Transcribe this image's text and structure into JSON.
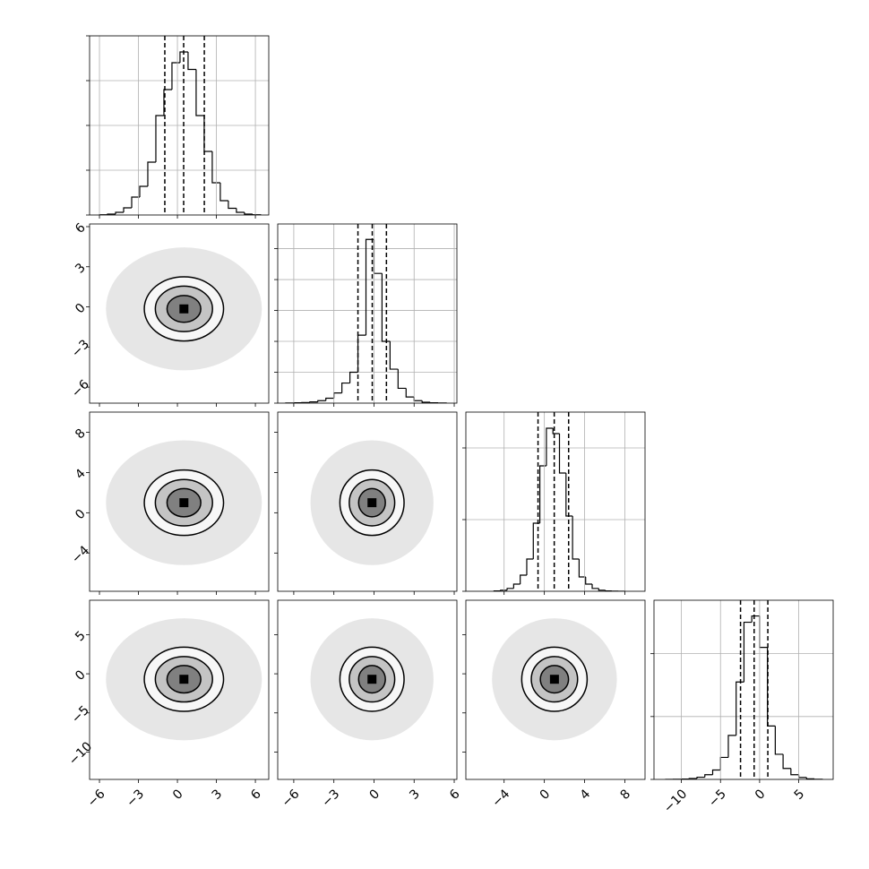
{
  "chart_data": {
    "type": "corner",
    "variables": [
      {
        "xlim": [
          -6.76,
          7.03
        ],
        "ticks": [
          {
            "value": -6,
            "label": "−6"
          },
          {
            "value": -3,
            "label": "−3"
          },
          0,
          3,
          6
        ],
        "bins": [
          -6,
          -5.38,
          -4.76,
          -4.14,
          -3.52,
          -2.9,
          -2.28,
          -1.66,
          -1.04,
          -0.42,
          0.2,
          0.82,
          1.44,
          2.06,
          2.68,
          3.3,
          3.92,
          4.54,
          5.16,
          5.78,
          6.4
        ],
        "counts": [
          5,
          20,
          60,
          160,
          400,
          640,
          1180,
          2220,
          2800,
          3400,
          3640,
          3250,
          2220,
          1420,
          720,
          320,
          150,
          60,
          20,
          5
        ],
        "quantiles": [
          -0.97,
          0.48,
          2.07
        ],
        "mean": 0.5,
        "contour_radii": [
          6.0,
          3.05,
          2.2,
          1.3
        ],
        "hist_ylim": [
          0,
          4000
        ],
        "hist_yticks": [
          0,
          1000,
          2000,
          3000,
          4000
        ]
      },
      {
        "xlim": [
          -7.2,
          6.2
        ],
        "ticks": [
          {
            "value": -6,
            "label": "−6"
          },
          {
            "value": -3,
            "label": "−3"
          },
          0,
          3,
          6
        ],
        "bins": [
          -6.6,
          -6,
          -5.4,
          -4.8,
          -4.2,
          -3.6,
          -3,
          -2.4,
          -1.8,
          -1.2,
          -0.6,
          0,
          0.6,
          1.2,
          1.8,
          2.4,
          3,
          3.6,
          4.2,
          4.8,
          5.4
        ],
        "counts": [
          5,
          10,
          20,
          40,
          80,
          160,
          330,
          650,
          1000,
          2200,
          5300,
          4200,
          2000,
          1100,
          480,
          200,
          80,
          30,
          10,
          5
        ],
        "quantiles": [
          -1.2,
          -0.13,
          0.93
        ],
        "mean": -0.15,
        "contour_radii": [
          4.6,
          2.4,
          1.7,
          1.0
        ],
        "hist_ylim": [
          0,
          5800
        ],
        "hist_yticks": [
          0,
          1000,
          2000,
          3000,
          4000,
          5000
        ]
      },
      {
        "xlim": [
          -7.8,
          10
        ],
        "ticks": [
          {
            "value": -4,
            "label": "−4"
          },
          0,
          4,
          8
        ],
        "bins": [
          -5,
          -4.35,
          -3.7,
          -3.05,
          -2.4,
          -1.75,
          -1.1,
          -0.45,
          0.2,
          0.85,
          1.5,
          2.15,
          2.8,
          3.45,
          4.1,
          4.75,
          5.4,
          6.05,
          6.7,
          7.35,
          8
        ],
        "counts": [
          10,
          30,
          80,
          200,
          450,
          900,
          1900,
          3500,
          4550,
          4400,
          3300,
          2100,
          900,
          400,
          200,
          80,
          30,
          10,
          5,
          2
        ],
        "quantiles": [
          -0.63,
          0.98,
          2.41
        ],
        "mean": 1.0,
        "contour_radii": [
          6.2,
          3.25,
          2.3,
          1.4
        ],
        "hist_ylim": [
          0,
          5000
        ],
        "hist_yticks": [
          0,
          2000,
          4000
        ]
      },
      {
        "xlim": [
          -13.5,
          9.4
        ],
        "ticks": [
          {
            "value": -10,
            "label": "−10"
          },
          {
            "value": -5,
            "label": "−5"
          },
          0,
          5
        ],
        "bins": [
          -12,
          -11,
          -10,
          -9,
          -8,
          -7,
          -6,
          -5,
          -4,
          -3,
          -2,
          -1,
          0,
          1,
          2,
          3,
          4,
          5,
          6,
          7,
          8
        ],
        "counts": [
          2,
          5,
          10,
          30,
          70,
          150,
          300,
          700,
          1400,
          3100,
          5000,
          5200,
          4200,
          1700,
          800,
          350,
          150,
          60,
          20,
          5
        ],
        "quantiles": [
          -2.44,
          -0.7,
          1.05
        ],
        "mean": -0.7,
        "contour_radii": [
          7.8,
          4.1,
          2.9,
          1.75
        ],
        "hist_ylim": [
          0,
          5700
        ],
        "hist_yticks": [
          0,
          2000,
          4000
        ]
      }
    ],
    "grid": true
  }
}
